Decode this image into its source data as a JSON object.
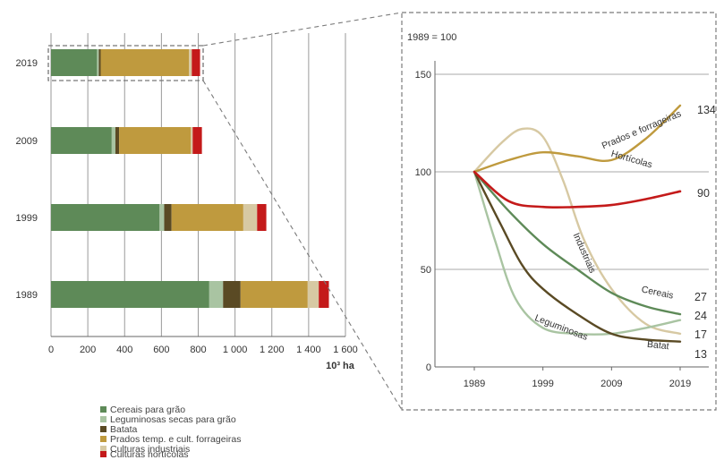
{
  "colors": {
    "cereais": "#5e8a58",
    "leguminosas": "#a9c4a2",
    "batata": "#5a4a24",
    "prados": "#bf9a3e",
    "industriais": "#d7c9a3",
    "horticolas": "#c41a1a",
    "grid": "#9a9a9a",
    "dash": "#7b7b7b"
  },
  "chart_data": [
    {
      "type": "bar",
      "orientation": "horizontal-stacked",
      "categories": [
        "2019",
        "2009",
        "1999",
        "1989"
      ],
      "series": [
        {
          "key": "cereais",
          "name": "Cereais para grão",
          "values": [
            250,
            330,
            590,
            860
          ]
        },
        {
          "key": "leguminosas",
          "name": "Leguminosas secas para grão",
          "values": [
            10,
            20,
            25,
            75
          ]
        },
        {
          "key": "batata",
          "name": "Batata",
          "values": [
            10,
            20,
            40,
            95
          ]
        },
        {
          "key": "prados",
          "name": "Prados temp. e cult. forrageiras",
          "values": [
            480,
            390,
            390,
            365
          ]
        },
        {
          "key": "industriais",
          "name": "Culturas industriais",
          "values": [
            15,
            10,
            75,
            60
          ]
        },
        {
          "key": "horticolas",
          "name": "Culturas hortícolas",
          "values": [
            45,
            50,
            50,
            55
          ]
        }
      ],
      "xlim": [
        0,
        1600
      ],
      "xticks": [
        "0",
        "200",
        "400",
        "600",
        "800",
        "1 000",
        "1 200",
        "1 400",
        "1 600"
      ],
      "xlabel": "10³ ha",
      "grid": "vertical",
      "highlight": "2019"
    },
    {
      "type": "line",
      "index_note": "1989 = 100",
      "x": [
        1989,
        1999,
        2009,
        2019
      ],
      "xticks": [
        "1989",
        "1999",
        "2009",
        "2019"
      ],
      "ylim": [
        0,
        150
      ],
      "yticks": [
        "0",
        "50",
        "100",
        "150"
      ],
      "grid": "horizontal",
      "series": [
        {
          "key": "prados",
          "name": "Prados e forrageiras",
          "end_label": "134",
          "points": [
            [
              1989,
              100
            ],
            [
              1994,
              106
            ],
            [
              1999,
              110
            ],
            [
              2004,
              108
            ],
            [
              2009,
              106
            ],
            [
              2014,
              117
            ],
            [
              2019,
              134
            ]
          ]
        },
        {
          "key": "horticolas",
          "name": "Hortícolas",
          "end_label": "90",
          "points": [
            [
              1989,
              100
            ],
            [
              1994,
              85
            ],
            [
              1999,
              82
            ],
            [
              2004,
              82
            ],
            [
              2009,
              83
            ],
            [
              2014,
              86
            ],
            [
              2019,
              90
            ]
          ]
        },
        {
          "key": "industriais",
          "name": "Industriais",
          "end_label": "17",
          "points": [
            [
              1989,
              100
            ],
            [
              1993,
              115
            ],
            [
              1996,
              122
            ],
            [
              1999,
              118
            ],
            [
              2002,
              95
            ],
            [
              2005,
              65
            ],
            [
              2009,
              40
            ],
            [
              2014,
              22
            ],
            [
              2019,
              17
            ]
          ]
        },
        {
          "key": "cereais",
          "name": "Cereais",
          "end_label": "27",
          "points": [
            [
              1989,
              100
            ],
            [
              1994,
              80
            ],
            [
              1999,
              63
            ],
            [
              2004,
              50
            ],
            [
              2009,
              38
            ],
            [
              2014,
              31
            ],
            [
              2019,
              27
            ]
          ]
        },
        {
          "key": "leguminosas",
          "name": "Leguminosas",
          "end_label": "24",
          "points": [
            [
              1989,
              100
            ],
            [
              1992,
              65
            ],
            [
              1995,
              35
            ],
            [
              1999,
              20
            ],
            [
              2004,
              17
            ],
            [
              2009,
              17
            ],
            [
              2014,
              20
            ],
            [
              2019,
              24
            ]
          ]
        },
        {
          "key": "batata",
          "name": "Batat",
          "end_label": "13",
          "points": [
            [
              1989,
              100
            ],
            [
              1993,
              72
            ],
            [
              1996,
              52
            ],
            [
              1999,
              40
            ],
            [
              2004,
              27
            ],
            [
              2009,
              17
            ],
            [
              2014,
              14
            ],
            [
              2019,
              13
            ]
          ]
        }
      ]
    }
  ]
}
